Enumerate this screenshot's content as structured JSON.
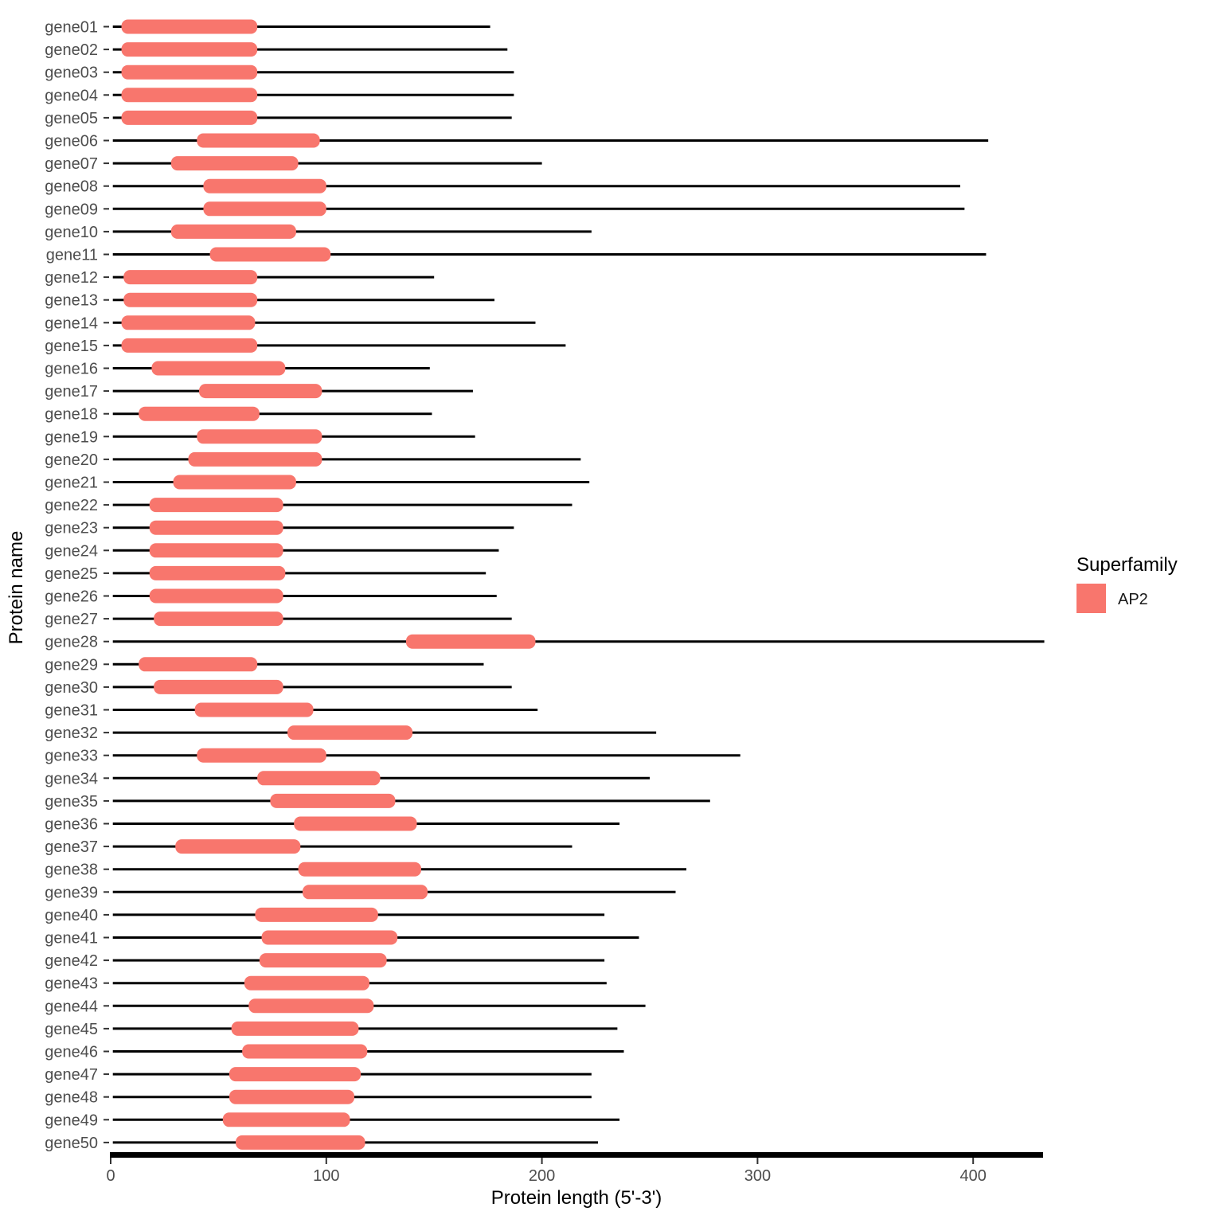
{
  "chart_data": {
    "type": "bar",
    "subtype": "horizontal protein chain/domain interval plot",
    "title": "",
    "xlabel": "Protein length (5'-3')",
    "ylabel": "Protein name",
    "x_ticks": [
      0,
      100,
      200,
      300,
      400
    ],
    "xlim": [
      -9,
      433
    ],
    "grid": "off",
    "colors": {
      "domain_fill": "#F8766D",
      "chain_line": "#000000",
      "axis_line": "#000000",
      "tick_mark": "#333333",
      "axis_text": "#4d4d4d"
    },
    "legend": {
      "title": "Superfamily",
      "position": "right",
      "items": [
        {
          "label": "AP2",
          "color": "#F8766D"
        }
      ]
    },
    "genes": [
      {
        "name": "gene01",
        "domain": "AP2",
        "domain_start": 5,
        "domain_end": 68,
        "length": 176
      },
      {
        "name": "gene02",
        "domain": "AP2",
        "domain_start": 5,
        "domain_end": 68,
        "length": 184
      },
      {
        "name": "gene03",
        "domain": "AP2",
        "domain_start": 5,
        "domain_end": 68,
        "length": 187
      },
      {
        "name": "gene04",
        "domain": "AP2",
        "domain_start": 5,
        "domain_end": 68,
        "length": 187
      },
      {
        "name": "gene05",
        "domain": "AP2",
        "domain_start": 5,
        "domain_end": 68,
        "length": 186
      },
      {
        "name": "gene06",
        "domain": "AP2",
        "domain_start": 40,
        "domain_end": 97,
        "length": 407
      },
      {
        "name": "gene07",
        "domain": "AP2",
        "domain_start": 28,
        "domain_end": 87,
        "length": 200
      },
      {
        "name": "gene08",
        "domain": "AP2",
        "domain_start": 43,
        "domain_end": 100,
        "length": 394
      },
      {
        "name": "gene09",
        "domain": "AP2",
        "domain_start": 43,
        "domain_end": 100,
        "length": 396
      },
      {
        "name": "gene10",
        "domain": "AP2",
        "domain_start": 28,
        "domain_end": 86,
        "length": 223
      },
      {
        "name": "gene11",
        "domain": "AP2",
        "domain_start": 46,
        "domain_end": 102,
        "length": 406
      },
      {
        "name": "gene12",
        "domain": "AP2",
        "domain_start": 6,
        "domain_end": 68,
        "length": 150
      },
      {
        "name": "gene13",
        "domain": "AP2",
        "domain_start": 6,
        "domain_end": 68,
        "length": 178
      },
      {
        "name": "gene14",
        "domain": "AP2",
        "domain_start": 5,
        "domain_end": 67,
        "length": 197
      },
      {
        "name": "gene15",
        "domain": "AP2",
        "domain_start": 5,
        "domain_end": 68,
        "length": 211
      },
      {
        "name": "gene16",
        "domain": "AP2",
        "domain_start": 19,
        "domain_end": 81,
        "length": 148
      },
      {
        "name": "gene17",
        "domain": "AP2",
        "domain_start": 41,
        "domain_end": 98,
        "length": 168
      },
      {
        "name": "gene18",
        "domain": "AP2",
        "domain_start": 13,
        "domain_end": 69,
        "length": 149
      },
      {
        "name": "gene19",
        "domain": "AP2",
        "domain_start": 40,
        "domain_end": 98,
        "length": 169
      },
      {
        "name": "gene20",
        "domain": "AP2",
        "domain_start": 36,
        "domain_end": 98,
        "length": 218
      },
      {
        "name": "gene21",
        "domain": "AP2",
        "domain_start": 29,
        "domain_end": 86,
        "length": 222
      },
      {
        "name": "gene22",
        "domain": "AP2",
        "domain_start": 18,
        "domain_end": 80,
        "length": 214
      },
      {
        "name": "gene23",
        "domain": "AP2",
        "domain_start": 18,
        "domain_end": 80,
        "length": 187
      },
      {
        "name": "gene24",
        "domain": "AP2",
        "domain_start": 18,
        "domain_end": 80,
        "length": 180
      },
      {
        "name": "gene25",
        "domain": "AP2",
        "domain_start": 18,
        "domain_end": 81,
        "length": 174
      },
      {
        "name": "gene26",
        "domain": "AP2",
        "domain_start": 18,
        "domain_end": 80,
        "length": 179
      },
      {
        "name": "gene27",
        "domain": "AP2",
        "domain_start": 20,
        "domain_end": 80,
        "length": 186
      },
      {
        "name": "gene28",
        "domain": "AP2",
        "domain_start": 137,
        "domain_end": 197,
        "length": 433
      },
      {
        "name": "gene29",
        "domain": "AP2",
        "domain_start": 13,
        "domain_end": 68,
        "length": 173
      },
      {
        "name": "gene30",
        "domain": "AP2",
        "domain_start": 20,
        "domain_end": 80,
        "length": 186
      },
      {
        "name": "gene31",
        "domain": "AP2",
        "domain_start": 39,
        "domain_end": 94,
        "length": 198
      },
      {
        "name": "gene32",
        "domain": "AP2",
        "domain_start": 82,
        "domain_end": 140,
        "length": 253
      },
      {
        "name": "gene33",
        "domain": "AP2",
        "domain_start": 40,
        "domain_end": 100,
        "length": 292
      },
      {
        "name": "gene34",
        "domain": "AP2",
        "domain_start": 68,
        "domain_end": 125,
        "length": 250
      },
      {
        "name": "gene35",
        "domain": "AP2",
        "domain_start": 74,
        "domain_end": 132,
        "length": 278
      },
      {
        "name": "gene36",
        "domain": "AP2",
        "domain_start": 85,
        "domain_end": 142,
        "length": 236
      },
      {
        "name": "gene37",
        "domain": "AP2",
        "domain_start": 30,
        "domain_end": 88,
        "length": 214
      },
      {
        "name": "gene38",
        "domain": "AP2",
        "domain_start": 87,
        "domain_end": 144,
        "length": 267
      },
      {
        "name": "gene39",
        "domain": "AP2",
        "domain_start": 89,
        "domain_end": 147,
        "length": 262
      },
      {
        "name": "gene40",
        "domain": "AP2",
        "domain_start": 67,
        "domain_end": 124,
        "length": 229
      },
      {
        "name": "gene41",
        "domain": "AP2",
        "domain_start": 70,
        "domain_end": 133,
        "length": 245
      },
      {
        "name": "gene42",
        "domain": "AP2",
        "domain_start": 69,
        "domain_end": 128,
        "length": 229
      },
      {
        "name": "gene43",
        "domain": "AP2",
        "domain_start": 62,
        "domain_end": 120,
        "length": 230
      },
      {
        "name": "gene44",
        "domain": "AP2",
        "domain_start": 64,
        "domain_end": 122,
        "length": 248
      },
      {
        "name": "gene45",
        "domain": "AP2",
        "domain_start": 56,
        "domain_end": 115,
        "length": 235
      },
      {
        "name": "gene46",
        "domain": "AP2",
        "domain_start": 61,
        "domain_end": 119,
        "length": 238
      },
      {
        "name": "gene47",
        "domain": "AP2",
        "domain_start": 55,
        "domain_end": 116,
        "length": 223
      },
      {
        "name": "gene48",
        "domain": "AP2",
        "domain_start": 55,
        "domain_end": 113,
        "length": 223
      },
      {
        "name": "gene49",
        "domain": "AP2",
        "domain_start": 52,
        "domain_end": 111,
        "length": 236
      },
      {
        "name": "gene50",
        "domain": "AP2",
        "domain_start": 58,
        "domain_end": 118,
        "length": 226
      }
    ]
  }
}
